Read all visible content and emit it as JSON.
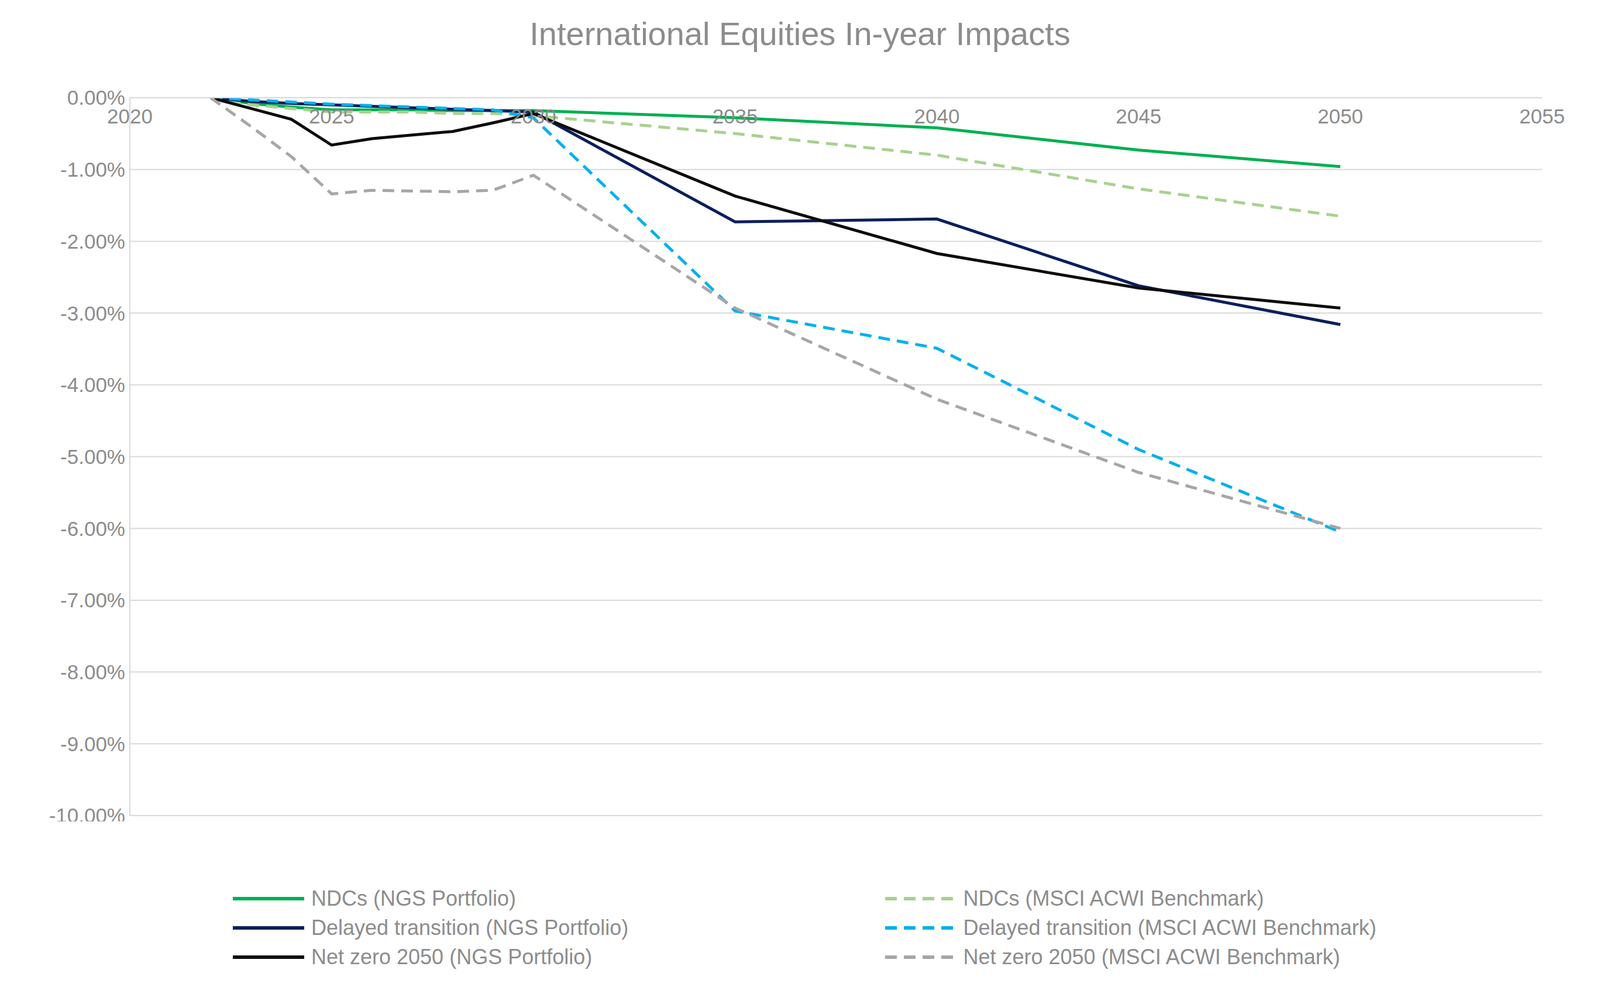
{
  "chart_data": {
    "type": "line",
    "title": "International Equities In-year Impacts",
    "x": [
      2022,
      2023,
      2024,
      2025,
      2026,
      2027,
      2028,
      2029,
      2030,
      2035,
      2040,
      2045,
      2050
    ],
    "series": [
      {
        "name": "NDCs (NGS Portfolio)",
        "color": "#00b050",
        "line_style": "solid",
        "values": [
          0,
          -0.08,
          -0.13,
          -0.17,
          -0.17,
          -0.17,
          -0.18,
          -0.18,
          -0.18,
          -0.28,
          -0.42,
          -0.73,
          -0.96
        ]
      },
      {
        "name": "NDCs (MSCI ACWI Benchmark)",
        "color": "#a9d18e",
        "line_style": "dashed",
        "values": [
          0,
          -0.1,
          -0.15,
          -0.2,
          -0.2,
          -0.2,
          -0.22,
          -0.22,
          -0.25,
          -0.5,
          -0.8,
          -1.27,
          -1.65
        ]
      },
      {
        "name": "Delayed transition (NGS Portfolio)",
        "color": "#0c1f5c",
        "line_style": "solid",
        "values": [
          0,
          -0.05,
          -0.08,
          -0.1,
          -0.12,
          -0.14,
          -0.16,
          -0.18,
          -0.2,
          -1.73,
          -1.69,
          -2.62,
          -3.16
        ]
      },
      {
        "name": "Delayed transition (MSCI ACWI Benchmark)",
        "color": "#00b0f0",
        "line_style": "dashed",
        "values": [
          0,
          -0.03,
          -0.06,
          -0.09,
          -0.11,
          -0.13,
          -0.15,
          -0.17,
          -0.28,
          -2.97,
          -3.49,
          -4.9,
          -6.05
        ]
      },
      {
        "name": "Net zero 2050 (NGS Portfolio)",
        "color": "#0d0d0d",
        "line_style": "solid",
        "values": [
          0,
          -0.15,
          -0.3,
          -0.66,
          -0.57,
          -0.52,
          -0.47,
          -0.35,
          -0.22,
          -1.37,
          -2.17,
          -2.65,
          -2.93
        ]
      },
      {
        "name": "Net zero 2050 (MSCI ACWI Benchmark)",
        "color": "#a6a6a6",
        "line_style": "dashed",
        "values": [
          0,
          -0.4,
          -0.82,
          -1.34,
          -1.29,
          -1.3,
          -1.31,
          -1.29,
          -1.08,
          -2.93,
          -4.2,
          -5.22,
          -6.0
        ]
      }
    ],
    "xlim": [
      2020,
      2055
    ],
    "xticks": [
      2020,
      2025,
      2030,
      2035,
      2040,
      2045,
      2050,
      2055
    ],
    "ylim": [
      -10,
      0
    ],
    "yticks": [
      {
        "value": 0,
        "label": "0.00%"
      },
      {
        "value": -1,
        "label": "-1.00%"
      },
      {
        "value": -2,
        "label": "-2.00%"
      },
      {
        "value": -3,
        "label": "-3.00%"
      },
      {
        "value": -4,
        "label": "-4.00%"
      },
      {
        "value": -5,
        "label": "-5.00%"
      },
      {
        "value": -6,
        "label": "-6.00%"
      },
      {
        "value": -7,
        "label": "-7.00%"
      },
      {
        "value": -8,
        "label": "-8.00%"
      },
      {
        "value": -9,
        "label": "-9.00%"
      },
      {
        "value": -10,
        "label": "-10.00%"
      }
    ],
    "grid": true,
    "legend": "bottom"
  }
}
